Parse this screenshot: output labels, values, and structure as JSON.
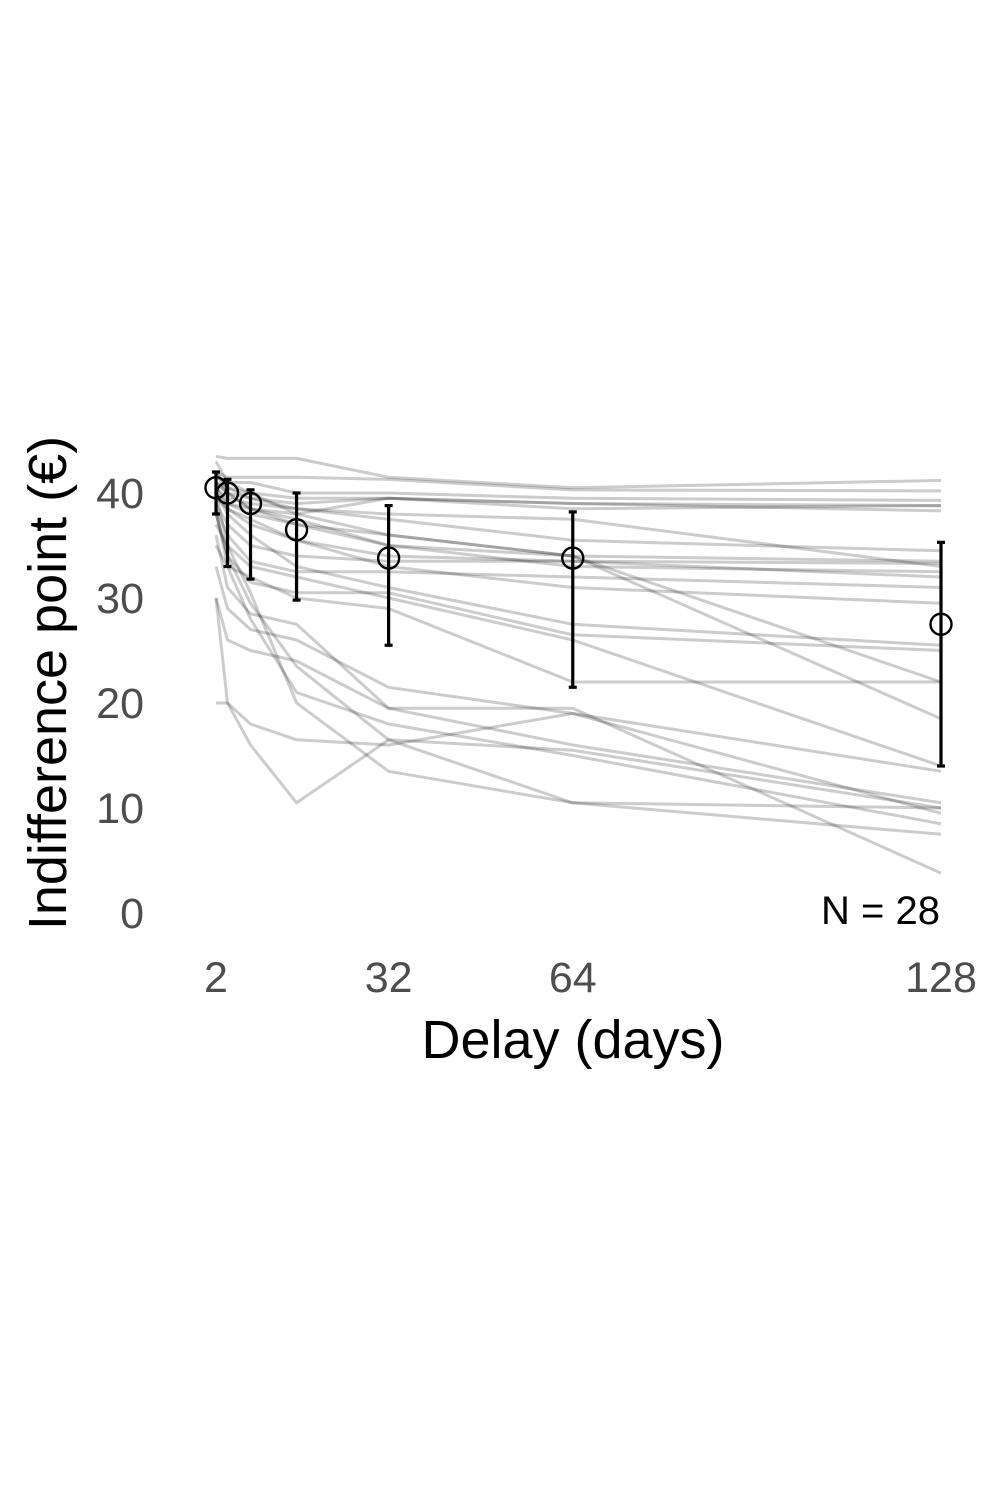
{
  "chart_data": {
    "type": "line",
    "xlabel": "Delay (days)",
    "ylabel": "Indifference point (€)",
    "x_ticks": [
      2,
      32,
      64,
      128
    ],
    "y_ticks": [
      0,
      10,
      20,
      30,
      40
    ],
    "xlim": [
      2,
      128
    ],
    "ylim": [
      0,
      44
    ],
    "grid": false,
    "legend": "none",
    "annotation": "N = 28",
    "delays": [
      2,
      4,
      8,
      16,
      32,
      64,
      128
    ],
    "mean_series": {
      "x": [
        2,
        4,
        8,
        16,
        32,
        64,
        128
      ],
      "y": [
        40.5,
        40.0,
        39.0,
        36.5,
        33.8,
        33.8,
        27.5
      ],
      "err_low": [
        38.0,
        33.0,
        31.8,
        29.8,
        25.5,
        21.5,
        14.0
      ],
      "err_high": [
        42.0,
        41.3,
        40.3,
        40.0,
        38.8,
        38.2,
        35.3
      ]
    },
    "subjects": [
      {
        "x": [
          2,
          4,
          8,
          16,
          32,
          64,
          128
        ],
        "y": [
          43.5,
          43.3,
          43.3,
          43.3,
          41.5,
          40.5,
          41.2
        ]
      },
      {
        "x": [
          2,
          4,
          8,
          16,
          32,
          64,
          128
        ],
        "y": [
          42.0,
          41.5,
          41.5,
          41.5,
          41.3,
          40.3,
          40.2
        ]
      },
      {
        "x": [
          2,
          4,
          8,
          16,
          32,
          64,
          128
        ],
        "y": [
          41.5,
          41.0,
          41.0,
          40.0,
          40.0,
          39.5,
          39.3
        ]
      },
      {
        "x": [
          2,
          4,
          8,
          16,
          32,
          64,
          128
        ],
        "y": [
          42.0,
          40.5,
          40.0,
          39.5,
          39.5,
          39.0,
          38.8
        ]
      },
      {
        "x": [
          2,
          4,
          8,
          16,
          32,
          64,
          128
        ],
        "y": [
          41.0,
          40.0,
          39.5,
          39.0,
          39.5,
          39.0,
          38.3
        ]
      },
      {
        "x": [
          2,
          4,
          8,
          16,
          32,
          64,
          128
        ],
        "y": [
          40.5,
          39.0,
          38.5,
          38.0,
          39.5,
          38.5,
          38.8
        ]
      },
      {
        "x": [
          2,
          4,
          8,
          16,
          32,
          64,
          128
        ],
        "y": [
          41.0,
          40.5,
          39.5,
          38.5,
          37.5,
          35.5,
          34.5
        ]
      },
      {
        "x": [
          2,
          4,
          8,
          16,
          32,
          64,
          128
        ],
        "y": [
          40.0,
          39.0,
          38.0,
          37.0,
          36.0,
          34.0,
          33.5
        ]
      },
      {
        "x": [
          2,
          4,
          8,
          16,
          32,
          64,
          128
        ],
        "y": [
          40.5,
          39.5,
          39.0,
          38.5,
          38.0,
          37.5,
          33.0
        ]
      },
      {
        "x": [
          2,
          4,
          8,
          16,
          32,
          64,
          128
        ],
        "y": [
          41.0,
          40.0,
          38.5,
          37.5,
          35.0,
          33.0,
          32.5
        ]
      },
      {
        "x": [
          2,
          4,
          8,
          16,
          32,
          64,
          128
        ],
        "y": [
          39.5,
          38.5,
          37.5,
          35.5,
          34.0,
          33.5,
          32.0
        ]
      },
      {
        "x": [
          2,
          4,
          8,
          16,
          32,
          64,
          128
        ],
        "y": [
          39.0,
          37.0,
          35.0,
          34.0,
          33.5,
          33.5,
          33.3
        ]
      },
      {
        "x": [
          2,
          4,
          8,
          16,
          32,
          64,
          128
        ],
        "y": [
          38.5,
          36.0,
          33.5,
          32.5,
          32.5,
          32.0,
          31.0
        ]
      },
      {
        "x": [
          2,
          4,
          8,
          16,
          32,
          64,
          128
        ],
        "y": [
          40.0,
          38.5,
          37.0,
          35.5,
          33.0,
          31.0,
          29.5
        ]
      },
      {
        "x": [
          2,
          4,
          8,
          16,
          32,
          64,
          128
        ],
        "y": [
          42.0,
          40.0,
          38.5,
          37.0,
          35.0,
          34.0,
          22.0
        ]
      },
      {
        "x": [
          2,
          4,
          8,
          16,
          32,
          64,
          128
        ],
        "y": [
          40.0,
          38.0,
          36.0,
          33.0,
          31.0,
          27.5,
          25.5
        ]
      },
      {
        "x": [
          2,
          4,
          8,
          16,
          32,
          64,
          128
        ],
        "y": [
          38.0,
          34.0,
          31.5,
          30.5,
          30.5,
          26.5,
          25.0
        ]
      },
      {
        "x": [
          2,
          4,
          8,
          16,
          32,
          64,
          128
        ],
        "y": [
          35.0,
          33.0,
          32.0,
          30.0,
          29.0,
          22.0,
          22.0
        ]
      },
      {
        "x": [
          2,
          4,
          8,
          16,
          32,
          64,
          128
        ],
        "y": [
          43.0,
          41.0,
          40.0,
          38.0,
          36.0,
          34.0,
          18.5
        ]
      },
      {
        "x": [
          2,
          4,
          8,
          16,
          32,
          64,
          128
        ],
        "y": [
          37.0,
          35.0,
          33.0,
          32.0,
          30.0,
          26.0,
          14.0
        ]
      },
      {
        "x": [
          2,
          4,
          8,
          16,
          32,
          64,
          128
        ],
        "y": [
          33.0,
          29.0,
          27.0,
          26.0,
          21.5,
          19.0,
          13.5
        ]
      },
      {
        "x": [
          2,
          4,
          8,
          16,
          32,
          64,
          128
        ],
        "y": [
          36.0,
          31.0,
          28.5,
          27.5,
          19.5,
          16.0,
          10.5
        ]
      },
      {
        "x": [
          2,
          4,
          8,
          16,
          32,
          64,
          128
        ],
        "y": [
          38.5,
          33.0,
          28.0,
          21.0,
          18.0,
          15.0,
          8.5
        ]
      },
      {
        "x": [
          2,
          4,
          8,
          16,
          32,
          64,
          128
        ],
        "y": [
          40.0,
          35.0,
          30.5,
          20.0,
          13.5,
          10.5,
          10.0
        ]
      },
      {
        "x": [
          2,
          4,
          8,
          16,
          32,
          64,
          128
        ],
        "y": [
          38.0,
          34.0,
          29.5,
          23.5,
          16.5,
          10.5,
          7.5
        ]
      },
      {
        "x": [
          2,
          4,
          8,
          16,
          32,
          64,
          128
        ],
        "y": [
          30.0,
          26.0,
          25.0,
          24.0,
          19.5,
          19.5,
          3.8
        ]
      },
      {
        "x": [
          2,
          4,
          8,
          16,
          32,
          64,
          128
        ],
        "y": [
          20.0,
          20.0,
          18.0,
          16.5,
          16.0,
          19.0,
          9.5
        ]
      },
      {
        "x": [
          2,
          4,
          8,
          16,
          32,
          64,
          128
        ],
        "y": [
          30.0,
          20.0,
          16.0,
          10.5,
          16.5,
          15.5,
          10.0
        ]
      }
    ]
  }
}
